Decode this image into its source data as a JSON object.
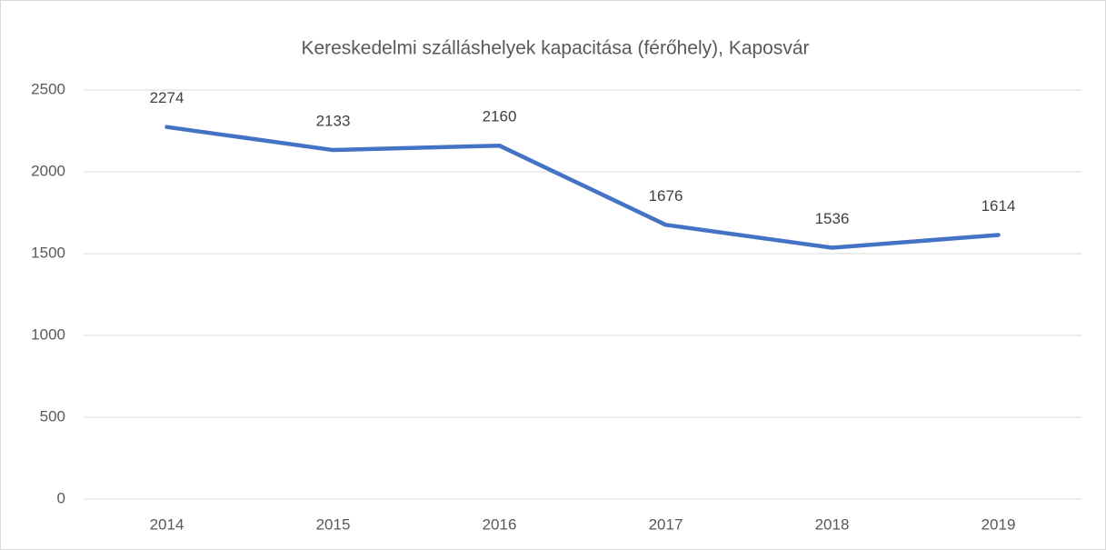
{
  "chart_data": {
    "type": "line",
    "title": "Kereskedelmi szálláshelyek kapacitása (férőhely), Kaposvár",
    "categories": [
      "2014",
      "2015",
      "2016",
      "2017",
      "2018",
      "2019"
    ],
    "series": [
      {
        "name": null,
        "color": "#4472c4",
        "values": [
          2274,
          2133,
          2160,
          1676,
          1536,
          1614
        ]
      }
    ],
    "ylim": [
      0,
      2500
    ],
    "yticks": [
      0,
      500,
      1000,
      1500,
      2000,
      2500
    ],
    "grid": true,
    "data_labels": true
  }
}
